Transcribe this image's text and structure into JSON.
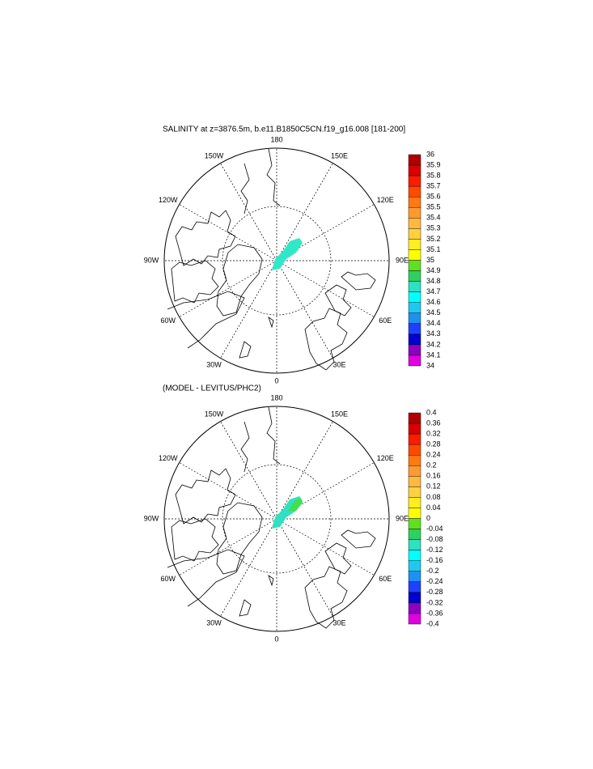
{
  "colors": [
    "#b00000",
    "#d80000",
    "#ff1a00",
    "#ff4a00",
    "#ff7a10",
    "#ff9a30",
    "#ffb840",
    "#ffd040",
    "#ffee20",
    "#ffff00",
    "#60e020",
    "#30d060",
    "#30e0c0",
    "#00ffff",
    "#20c8f0",
    "#2090f0",
    "#2040ff",
    "#0000d0",
    "#9000c0",
    "#e000e0",
    "#d0d0d0",
    "#707070"
  ],
  "panels": [
    {
      "title": "SALINITY at z=3876.5m, b.e11.B1850C5CN.f19_g16.008 [181-200]",
      "lon_labels": [
        "0",
        "30E",
        "60E",
        "90E",
        "120E",
        "150E",
        "180",
        "150W",
        "120W",
        "90W",
        "60W",
        "30W"
      ],
      "levels": [
        36,
        35.9,
        35.8,
        35.7,
        35.6,
        35.5,
        35.4,
        35.3,
        35.2,
        35.1,
        35,
        34.9,
        34.8,
        34.7,
        34.6,
        34.5,
        34.4,
        34.3,
        34.2,
        34.1,
        34
      ]
    },
    {
      "title": "(MODEL - LEVITUS/PHC2)",
      "lon_labels": [
        "0",
        "30E",
        "60E",
        "90E",
        "120E",
        "150E",
        "180",
        "150W",
        "120W",
        "90W",
        "60W",
        "30W"
      ],
      "levels": [
        0.4,
        0.36,
        0.32,
        0.28,
        0.24,
        0.2,
        0.16,
        0.12,
        0.08,
        0.04,
        0,
        -0.04,
        -0.08,
        -0.12,
        -0.16,
        -0.2,
        -0.24,
        -0.28,
        -0.32,
        -0.36,
        -0.4
      ]
    }
  ]
}
